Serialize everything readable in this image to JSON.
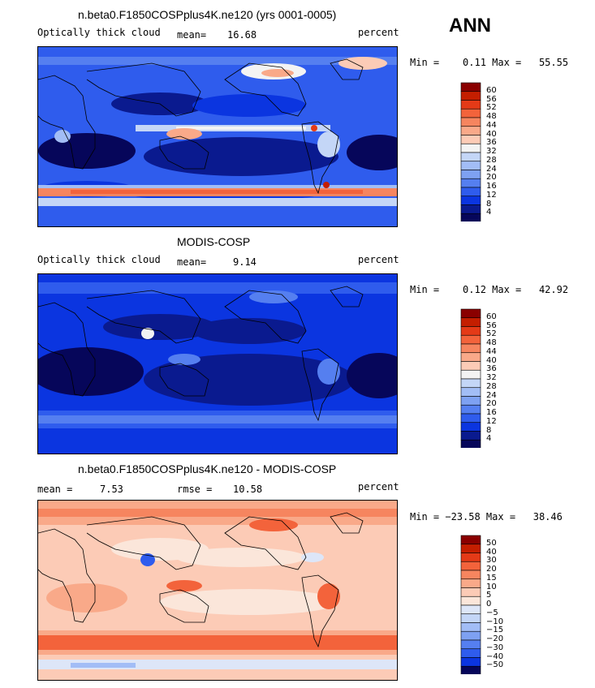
{
  "season": "ANN",
  "panels": [
    {
      "title": "n.beta0.F1850COSPplus4K.ne120 (yrs 0001-0005)",
      "left_label": "Optically thick cloud",
      "stat_label": "mean=",
      "stat_value": "16.68",
      "units": "percent",
      "minmax": "Min =    0.11 Max =   55.55",
      "levels": [
        "60",
        "56",
        "52",
        "48",
        "44",
        "40",
        "36",
        "32",
        "28",
        "24",
        "20",
        "16",
        "12",
        "8",
        "4"
      ],
      "colors": [
        "#8a0000",
        "#c41e00",
        "#e43a17",
        "#f3633b",
        "#f6855f",
        "#f9a989",
        "#fccbb6",
        "#f3f3f3",
        "#c4d6f7",
        "#a2bdf6",
        "#7ea1f2",
        "#557ff0",
        "#2f5ced",
        "#0b35e0",
        "#0a1a8f",
        "#06065a"
      ]
    },
    {
      "title": "MODIS-COSP",
      "left_label": "Optically thick cloud",
      "stat_label": "mean=",
      "stat_value": "9.14",
      "units": "percent",
      "minmax": "Min =    0.12 Max =   42.92",
      "levels": [
        "60",
        "56",
        "52",
        "48",
        "44",
        "40",
        "36",
        "32",
        "28",
        "24",
        "20",
        "16",
        "12",
        "8",
        "4"
      ],
      "colors": [
        "#8a0000",
        "#c41e00",
        "#e43a17",
        "#f3633b",
        "#f6855f",
        "#f9a989",
        "#fccbb6",
        "#f3f3f3",
        "#c4d6f7",
        "#a2bdf6",
        "#7ea1f2",
        "#557ff0",
        "#2f5ced",
        "#0b35e0",
        "#0a1a8f",
        "#06065a"
      ]
    },
    {
      "title": "n.beta0.F1850COSPplus4K.ne120 - MODIS-COSP",
      "left_label": "mean =",
      "left_value": "7.53",
      "stat_label": "rmse =",
      "stat_value": "10.58",
      "units": "percent",
      "minmax": "Min = −23.58 Max =   38.46",
      "levels": [
        "50",
        "40",
        "30",
        "20",
        "15",
        "10",
        "5",
        "0",
        "−5",
        "−10",
        "−15",
        "−20",
        "−30",
        "−40",
        "−50"
      ],
      "colors": [
        "#8a0000",
        "#c41e00",
        "#e43a17",
        "#f3633b",
        "#f6855f",
        "#f9a989",
        "#fccbb6",
        "#fbe6da",
        "#dde6f8",
        "#c4d6f7",
        "#a2bdf6",
        "#7ea1f2",
        "#557ff0",
        "#2f5ced",
        "#0b35e0",
        "#06065a"
      ]
    }
  ],
  "chart_data": [
    {
      "type": "heatmap",
      "title": "n.beta0.F1850COSPplus4K.ne120 (yrs 0001-0005)",
      "variable": "Optically thick cloud",
      "units": "percent",
      "mean": 16.68,
      "min": 0.11,
      "max": 55.55,
      "contour_levels": [
        4,
        8,
        12,
        16,
        20,
        24,
        28,
        32,
        36,
        40,
        44,
        48,
        52,
        56,
        60
      ]
    },
    {
      "type": "heatmap",
      "title": "MODIS-COSP",
      "variable": "Optically thick cloud",
      "units": "percent",
      "mean": 9.14,
      "min": 0.12,
      "max": 42.92,
      "contour_levels": [
        4,
        8,
        12,
        16,
        20,
        24,
        28,
        32,
        36,
        40,
        44,
        48,
        52,
        56,
        60
      ]
    },
    {
      "type": "heatmap",
      "title": "n.beta0.F1850COSPplus4K.ne120 - MODIS-COSP",
      "units": "percent",
      "mean": 7.53,
      "rmse": 10.58,
      "min": -23.58,
      "max": 38.46,
      "contour_levels": [
        -50,
        -40,
        -30,
        -20,
        -15,
        -10,
        -5,
        0,
        5,
        10,
        15,
        20,
        30,
        40,
        50
      ]
    }
  ]
}
